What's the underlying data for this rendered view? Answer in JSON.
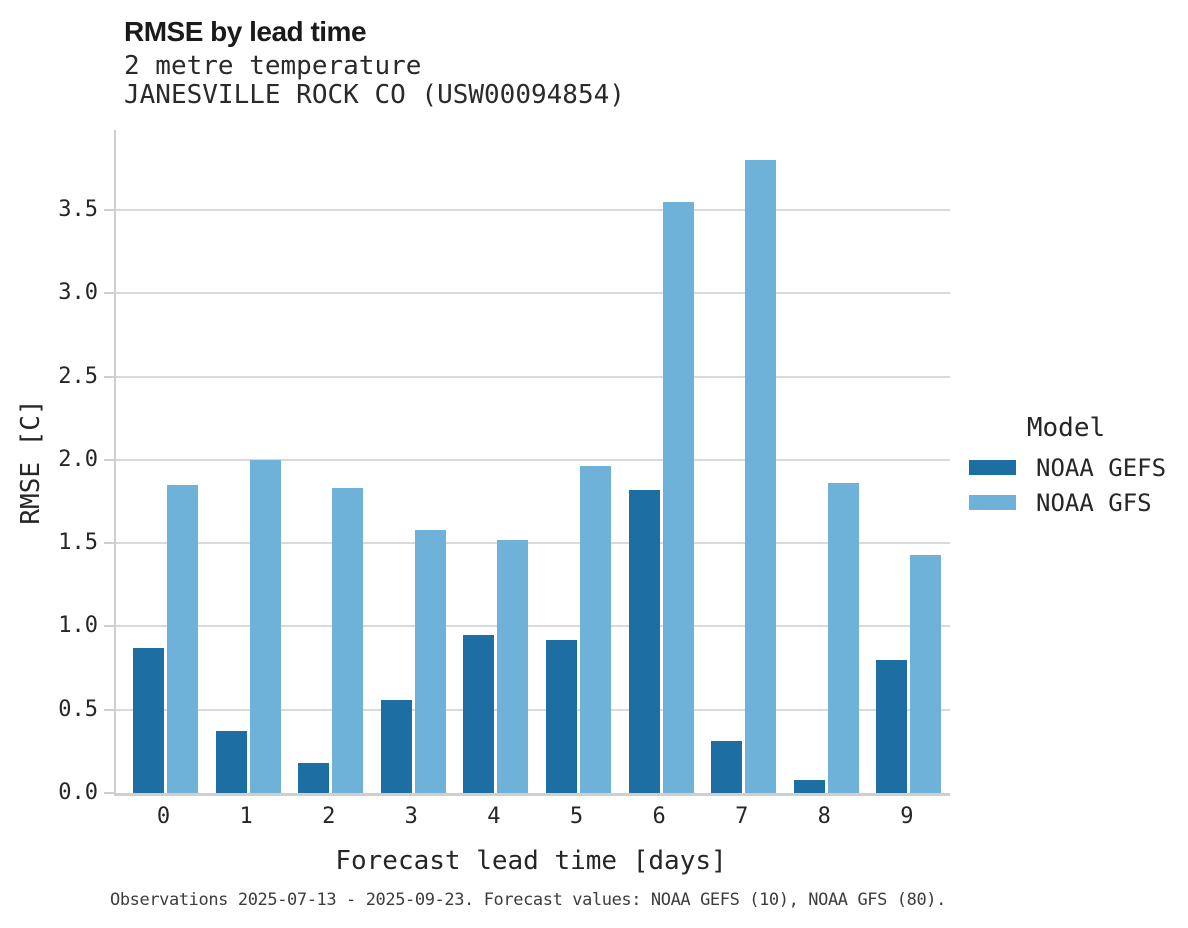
{
  "header": {
    "title": "RMSE by lead time",
    "subtitle_line1": "2 metre temperature",
    "subtitle_line2": "JANESVILLE ROCK CO (USW00094854)"
  },
  "chart_data": {
    "type": "bar",
    "title": "RMSE by lead time",
    "subtitle": [
      "2 metre temperature",
      "JANESVILLE ROCK CO (USW00094854)"
    ],
    "categories": [
      "0",
      "1",
      "2",
      "3",
      "4",
      "5",
      "6",
      "7",
      "8",
      "9"
    ],
    "series": [
      {
        "name": "NOAA GEFS",
        "color": "#1d6fa3",
        "values": [
          0.87,
          0.37,
          0.18,
          0.56,
          0.95,
          0.92,
          1.82,
          0.31,
          0.08,
          0.8
        ]
      },
      {
        "name": "NOAA GFS",
        "color": "#6fb2d9",
        "values": [
          1.85,
          2.0,
          1.83,
          1.58,
          1.52,
          1.96,
          3.55,
          3.8,
          1.86,
          1.43
        ]
      }
    ],
    "xlabel": "Forecast lead time [days]",
    "ylabel": "RMSE [C]",
    "ylim": [
      0,
      3.98
    ],
    "yticks": [
      0.0,
      0.5,
      1.0,
      1.5,
      2.0,
      2.5,
      3.0,
      3.5
    ],
    "grid": true,
    "legend_title": "Model",
    "legend_position": "right"
  },
  "legend": {
    "title": "Model",
    "items": [
      {
        "label": "NOAA GEFS",
        "color": "#1d6fa3"
      },
      {
        "label": "NOAA GFS",
        "color": "#6fb2d9"
      }
    ]
  },
  "footer": {
    "caption": "Observations 2025-07-13 - 2025-09-23. Forecast values: NOAA GEFS (10), NOAA GFS (80)."
  },
  "colors": {
    "gefs_bar": "#1d6fa3",
    "gfs_bar": "#6fb2d9",
    "gridline": "#d9d9d9",
    "axis_spine": "#cfcfcf",
    "text": "#262626",
    "caption_text": "#3d3d3d"
  }
}
